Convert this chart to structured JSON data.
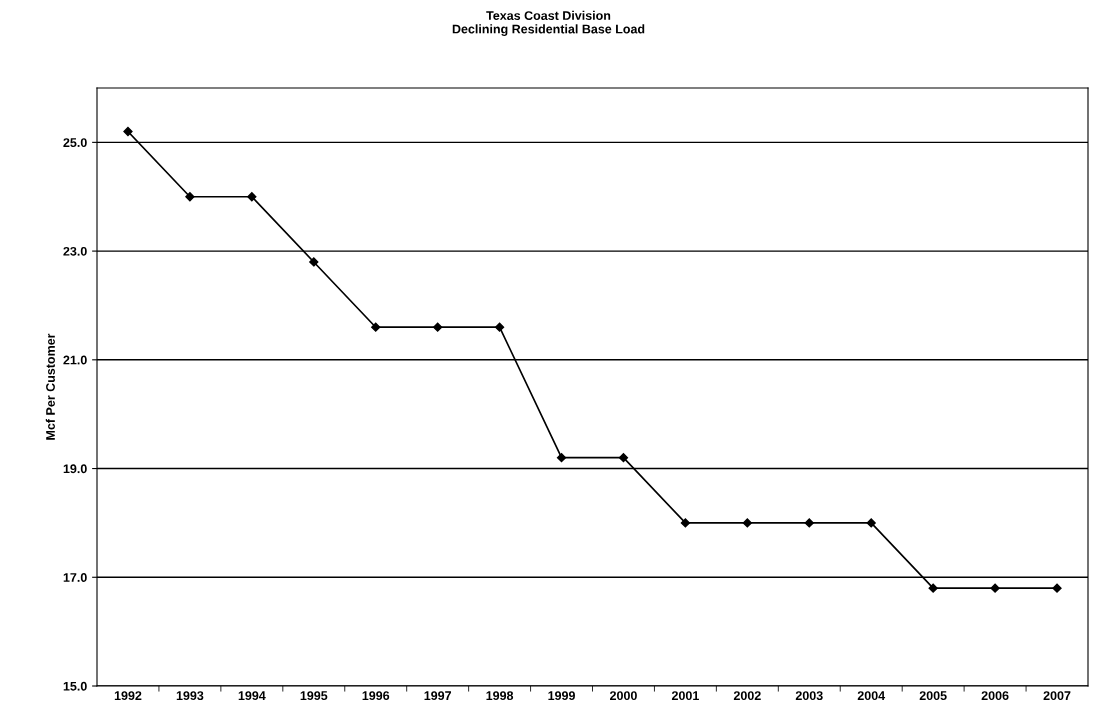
{
  "chart_data": {
    "type": "line",
    "title": "Texas Coast Division\nDeclining Residential Base Load",
    "ylabel": "Mcf Per Customer",
    "categories": [
      "1992",
      "1993",
      "1994",
      "1995",
      "1996",
      "1997",
      "1998",
      "1999",
      "2000",
      "2001",
      "2002",
      "2003",
      "2004",
      "2005",
      "2006",
      "2007"
    ],
    "series": [
      {
        "color": "#000000",
        "values": [
          25.2,
          24.0,
          24.0,
          22.8,
          21.6,
          21.6,
          21.6,
          19.2,
          19.2,
          18.0,
          18.0,
          18.0,
          18.0,
          16.8,
          16.8,
          16.8
        ]
      }
    ],
    "ylim": [
      15,
      26
    ],
    "yticks": [
      {
        "value": 15,
        "label": "15.0"
      },
      {
        "value": 17,
        "label": "17.0"
      },
      {
        "value": 19,
        "label": "19.0"
      },
      {
        "value": 21,
        "label": "21.0"
      },
      {
        "value": 23,
        "label": "23.0"
      },
      {
        "value": 25,
        "label": "25.0"
      }
    ],
    "grid": "y",
    "marker": "diamond",
    "line_style": "solid",
    "legend": false
  }
}
